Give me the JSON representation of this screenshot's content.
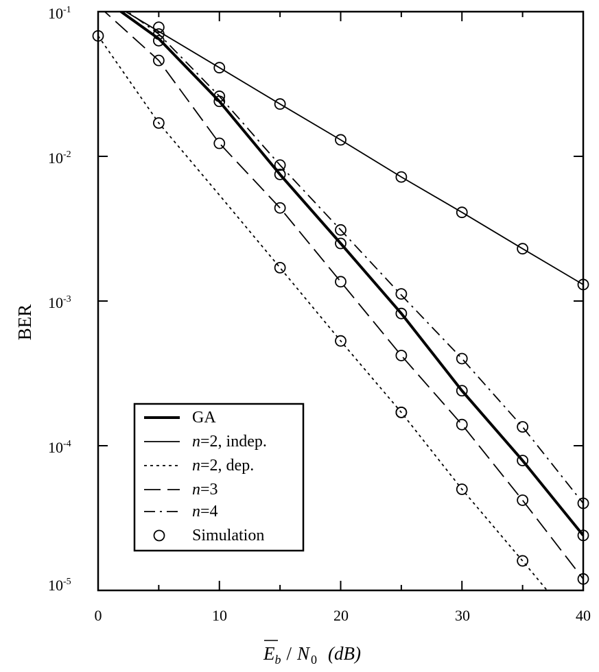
{
  "chart_data": {
    "type": "line",
    "ylabel": "BER",
    "xlabel": {
      "base": "E",
      "sub_b": "b",
      "div": "/",
      "n": "N",
      "sub_0": "0",
      "unit": "(dB)"
    },
    "xlim": [
      0,
      40
    ],
    "ylim": [
      1e-05,
      0.1
    ],
    "yscale": "log",
    "grid": false,
    "legend_position": "bottom-left",
    "x_ticks": [
      "0",
      "10",
      "20",
      "30",
      "40"
    ],
    "y_ticks": [
      {
        "base": "10",
        "exp": "-1"
      },
      {
        "base": "10",
        "exp": "-2"
      },
      {
        "base": "10",
        "exp": "-3"
      },
      {
        "base": "10",
        "exp": "-4"
      },
      {
        "base": "10",
        "exp": "-5"
      }
    ],
    "series": [
      {
        "name": "GA",
        "style": "thick-solid",
        "x": [
          0,
          5,
          10,
          15,
          20,
          25,
          30,
          35,
          40
        ],
        "y": [
          0.13,
          0.065,
          0.024,
          0.0075,
          0.0025,
          0.00082,
          0.00024,
          7.9e-05,
          2.4e-05
        ]
      },
      {
        "name": "n=2, indep.",
        "style": "thin-solid",
        "x": [
          0,
          5,
          10,
          15,
          20,
          25,
          30,
          35,
          40
        ],
        "y": [
          0.13,
          0.073,
          0.041,
          0.023,
          0.013,
          0.0072,
          0.0041,
          0.0023,
          0.0013
        ]
      },
      {
        "name": "n=2, dep.",
        "style": "short-dash",
        "x": [
          0,
          5,
          10,
          15,
          20,
          25,
          30,
          35,
          40
        ],
        "y": [
          0.068,
          0.017,
          0.0054,
          0.0017,
          0.00053,
          0.00017,
          5e-05,
          1.6e-05,
          5e-06
        ]
      },
      {
        "name": "n=3",
        "style": "long-dash",
        "x": [
          0,
          5,
          10,
          15,
          20,
          25,
          30,
          35,
          40
        ],
        "y": [
          0.11,
          0.046,
          0.0123,
          0.0044,
          0.00136,
          0.00042,
          0.00014,
          4.2e-05,
          1.2e-05
        ]
      },
      {
        "name": "n=4",
        "style": "dash-dot",
        "x": [
          0,
          5,
          10,
          15,
          20,
          25,
          30,
          35,
          40
        ],
        "y": [
          0.14,
          0.07,
          0.026,
          0.0087,
          0.0031,
          0.0011,
          0.0004,
          0.000135,
          4e-05
        ]
      },
      {
        "name": "Simulation",
        "style": "circle-marker",
        "x": [
          0,
          5,
          5,
          5,
          5,
          5,
          10,
          10,
          10,
          10,
          15,
          15,
          15,
          15,
          15,
          20,
          20,
          20,
          20,
          20,
          25,
          25,
          25,
          25,
          25,
          25,
          30,
          30,
          30,
          30,
          30,
          35,
          35,
          35,
          35,
          35,
          40,
          40,
          40,
          40
        ],
        "y": [
          0.068,
          0.078,
          0.07,
          0.063,
          0.046,
          0.017,
          0.041,
          0.026,
          0.024,
          0.0123,
          0.023,
          0.0087,
          0.0075,
          0.0044,
          0.0017,
          0.013,
          0.0031,
          0.0025,
          0.00136,
          0.00053,
          0.0072,
          0.00112,
          0.00082,
          0.00042,
          0.00017,
          0.00017,
          0.0041,
          0.0004,
          0.00024,
          0.00014,
          5e-05,
          0.0023,
          0.000135,
          7.9e-05,
          4.2e-05,
          1.6e-05,
          0.0013,
          4e-05,
          2.4e-05,
          1.2e-05
        ]
      }
    ],
    "legend": [
      {
        "label": "GA",
        "style": "thick-solid"
      },
      {
        "italic": "n",
        "rest": "=2, indep.",
        "style": "thin-solid"
      },
      {
        "italic": "n",
        "rest": "=2, dep.",
        "style": "short-dash"
      },
      {
        "italic": "n",
        "rest": "=3",
        "style": "long-dash"
      },
      {
        "italic": "n",
        "rest": "=4",
        "style": "dash-dot"
      },
      {
        "label": "Simulation",
        "style": "circle-marker"
      }
    ]
  }
}
